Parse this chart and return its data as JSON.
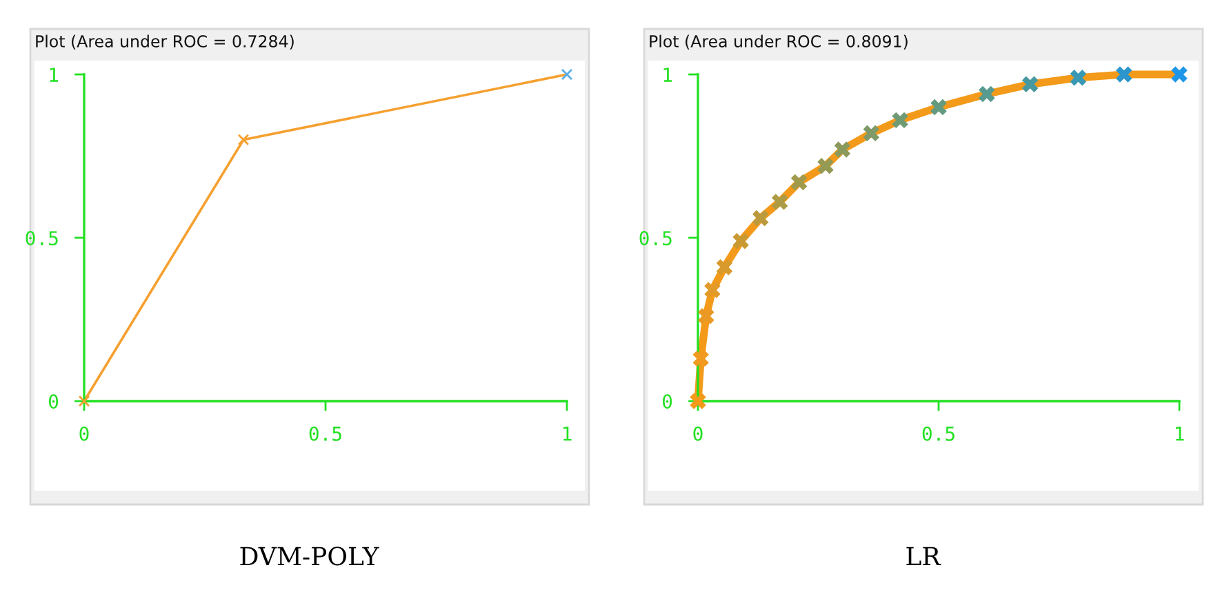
{
  "chart_data": [
    {
      "type": "line",
      "title": "Plot (Area under ROC = 0.7284)",
      "annotations": [
        "DVM-POLY"
      ],
      "marker": "cross",
      "x": [
        0,
        0.33,
        1
      ],
      "xlim": [
        0,
        1
      ],
      "ylim": [
        0,
        1
      ],
      "xticks": [
        0,
        0.5,
        1
      ],
      "yticks": [
        0,
        0.5,
        1
      ],
      "grid": false,
      "legend": false,
      "series": [
        {
          "color": "#f5a030",
          "colors": [
            "#f5a030",
            "#f5a030",
            "#5aaee8"
          ],
          "values": [
            0,
            0.8,
            1
          ]
        }
      ]
    },
    {
      "type": "line",
      "title": "Plot (Area under ROC = 0.8091)",
      "annotations": [
        "LR"
      ],
      "marker": "cross",
      "x": [
        0,
        0.006,
        0.017,
        0.03,
        0.055,
        0.089,
        0.13,
        0.17,
        0.21,
        0.265,
        0.3,
        0.36,
        0.42,
        0.5,
        0.6,
        0.69,
        0.79,
        0.885,
        1.0
      ],
      "xlim": [
        0,
        1
      ],
      "ylim": [
        0,
        1
      ],
      "xticks": [
        0,
        0.5,
        1
      ],
      "yticks": [
        0,
        0.5,
        1
      ],
      "grid": false,
      "legend": false,
      "series": [
        {
          "color": "#f39a1a",
          "colors": [
            "#f39a1a",
            "#f09a20",
            "#ea9a24",
            "#e29a28",
            "#d89a2c",
            "#c99a34",
            "#ba9a3c",
            "#ac9a44",
            "#a09a4c",
            "#949a54",
            "#8a9a5c",
            "#7e9a68",
            "#709a74",
            "#649a80",
            "#569a90",
            "#4898a0",
            "#3a98b4",
            "#2c96cc",
            "#1e96e8"
          ],
          "values": [
            0,
            0.13,
            0.26,
            0.34,
            0.41,
            0.49,
            0.56,
            0.61,
            0.67,
            0.72,
            0.77,
            0.82,
            0.86,
            0.9,
            0.94,
            0.97,
            0.99,
            1.0,
            1.0
          ]
        }
      ]
    }
  ]
}
